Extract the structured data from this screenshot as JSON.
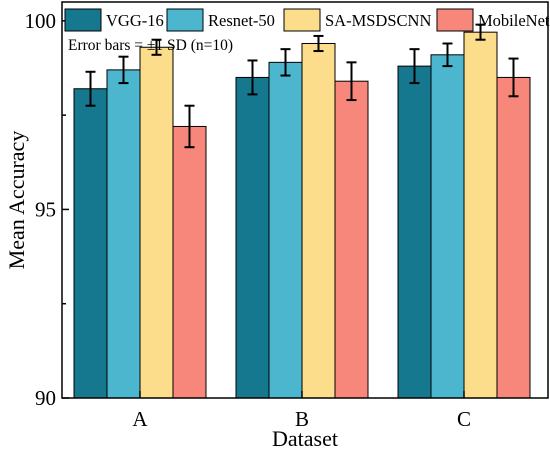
{
  "chart_data": {
    "type": "bar",
    "xlabel": "Dataset",
    "ylabel": "Mean Accuracy",
    "categories": [
      "A",
      "B",
      "C"
    ],
    "ylim": [
      90,
      100.5
    ],
    "yticks": [
      90,
      95,
      100
    ],
    "grid": false,
    "legend_position": "top",
    "annotation": "Error bars = ±1 SD (n=10)",
    "series": [
      {
        "name": "VGG-16",
        "color": "#16788f",
        "values": [
          98.2,
          98.5,
          98.8
        ],
        "errors": [
          0.45,
          0.45,
          0.45
        ]
      },
      {
        "name": "Resnet-50",
        "color": "#4db6cf",
        "values": [
          98.7,
          98.9,
          99.1
        ],
        "errors": [
          0.35,
          0.35,
          0.3
        ]
      },
      {
        "name": "SA-MSDSCNN",
        "color": "#fbdd8c",
        "values": [
          99.3,
          99.4,
          99.7
        ],
        "errors": [
          0.2,
          0.2,
          0.2
        ]
      },
      {
        "name": "MobileNet",
        "color": "#f6877a",
        "values": [
          97.2,
          98.4,
          98.5
        ],
        "errors": [
          0.55,
          0.5,
          0.5
        ]
      }
    ]
  }
}
